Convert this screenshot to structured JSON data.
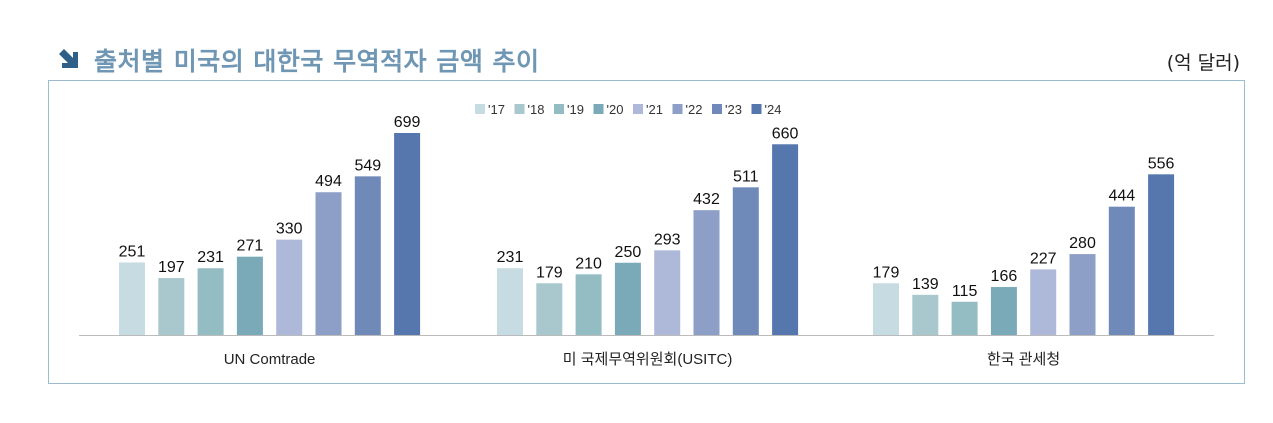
{
  "header": {
    "title": "출처별 미국의 대한국 무역적자 금액 추이",
    "unit": "(억 달러)",
    "icon": "arrow-down-right-icon"
  },
  "chart_data": {
    "type": "bar",
    "title": "출처별 미국의 대한국 무역적자 금액 추이",
    "unit": "(억 달러)",
    "categories": [
      "UN Comtrade",
      "미 국제무역위원회(USITC)",
      "한국 관세청"
    ],
    "series": [
      {
        "name": "'17",
        "color": "#c7dbe2",
        "values": [
          251,
          231,
          179
        ]
      },
      {
        "name": "'18",
        "color": "#a9c8cd",
        "values": [
          197,
          179,
          139
        ]
      },
      {
        "name": "'19",
        "color": "#94bcc3",
        "values": [
          231,
          210,
          115
        ]
      },
      {
        "name": "'20",
        "color": "#7aa9b8",
        "values": [
          271,
          250,
          166
        ]
      },
      {
        "name": "'21",
        "color": "#aeb8d9",
        "values": [
          330,
          293,
          227
        ]
      },
      {
        "name": "'22",
        "color": "#8d9fc6",
        "values": [
          494,
          432,
          280
        ]
      },
      {
        "name": "'23",
        "color": "#6f8ab8",
        "values": [
          549,
          511,
          444
        ]
      },
      {
        "name": "'24",
        "color": "#5677ae",
        "values": [
          699,
          660,
          556
        ]
      }
    ],
    "ylim": [
      0,
      699
    ],
    "legend": "top-center",
    "grid": false
  }
}
